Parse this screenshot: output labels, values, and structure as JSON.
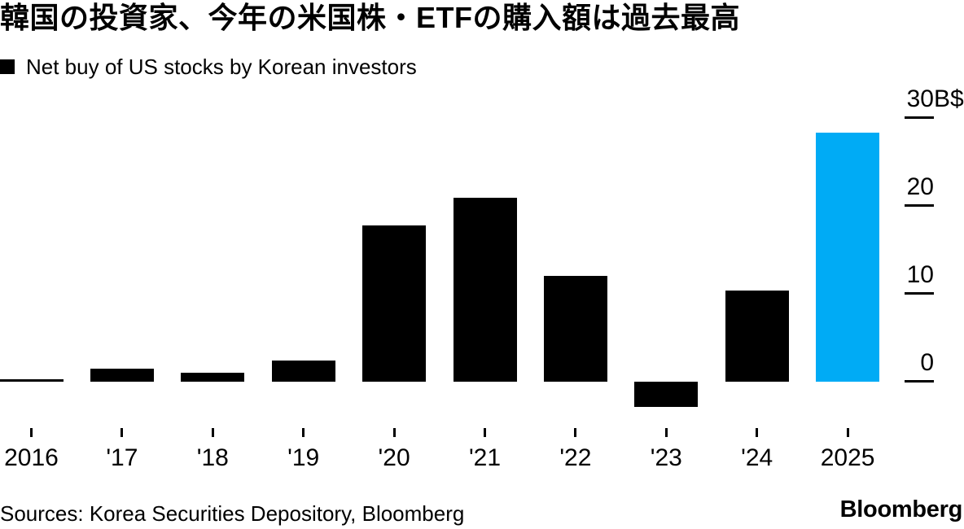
{
  "header": {
    "title": "韓国の投資家、今年の米国株・ETFの購入額は過去最高",
    "legend_marker": "■",
    "legend_label": "Net buy of US stocks by Korean investors"
  },
  "chart_data": {
    "type": "bar",
    "title": "Net buy of US stocks by Korean investors",
    "categories": [
      "2016",
      "'17",
      "'18",
      "'19",
      "'20",
      "'21",
      "'22",
      "'23",
      "'24",
      "2025"
    ],
    "values": [
      0.2,
      1.5,
      1.0,
      2.4,
      17.8,
      20.9,
      12.0,
      -2.9,
      10.4,
      28.3
    ],
    "unit": "B$ (billions of US dollars)",
    "y_ticks": [
      {
        "value": 30,
        "label": "30",
        "suffix": "B$"
      },
      {
        "value": 20,
        "label": "20",
        "suffix": ""
      },
      {
        "value": 10,
        "label": "10",
        "suffix": ""
      },
      {
        "value": 0,
        "label": "0",
        "suffix": ""
      }
    ],
    "ylim": [
      -4,
      30
    ],
    "grid": false,
    "legend_position": "top-left",
    "axis_side": "right",
    "highlight_category": "2025",
    "colors": {
      "bar": "#000000",
      "highlight": "#00abf5"
    }
  },
  "footer": {
    "sources": "Sources: Korea Securities Depository, Bloomberg",
    "logo": "Bloomberg"
  }
}
